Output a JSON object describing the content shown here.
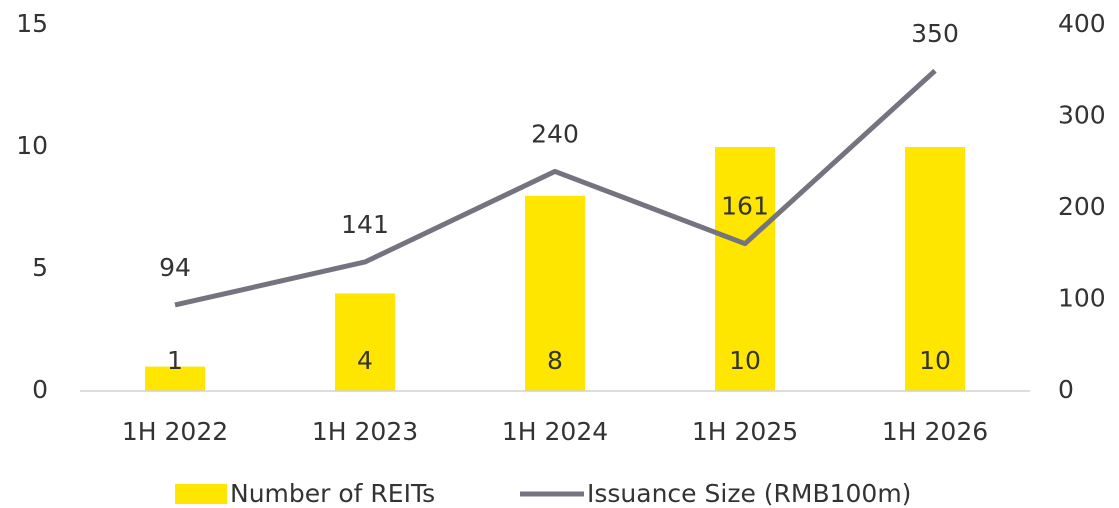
{
  "chart_data": {
    "type": "bar_line",
    "categories": [
      "1H 2022",
      "1H 2023",
      "1H 2024",
      "1H 2025",
      "1H 2026"
    ],
    "series": [
      {
        "name": "Number of REITs",
        "color": "#ffe600",
        "values": [
          1,
          4,
          8,
          10,
          10
        ]
      },
      {
        "name": "Issuance Size (RMB100m)",
        "color": "#747480",
        "values": [
          94,
          141,
          240,
          161,
          350
        ],
        "axis": "y2"
      }
    ],
    "ylim": [
      0,
      15
    ],
    "yticks": [
      0,
      5,
      10,
      15
    ],
    "y2lim": [
      0,
      400
    ],
    "y2ticks": [
      0,
      100,
      200,
      300,
      400
    ],
    "grid": false,
    "legend": "bottom"
  }
}
